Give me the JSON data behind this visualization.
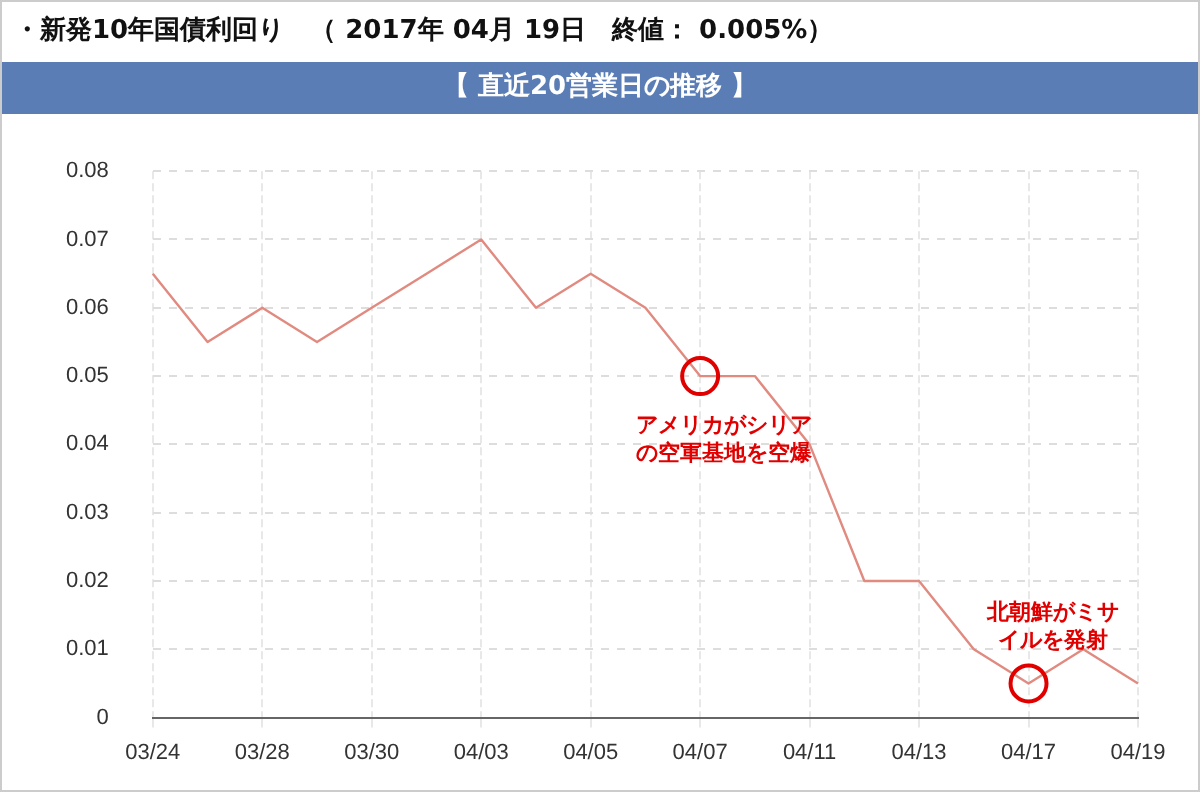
{
  "chart_data": {
    "type": "line",
    "title": "・新発10年国債利回り　（ 2017年 04月 19日　終値： 0.005%）",
    "subtitle": "【 直近20営業日の推移 】",
    "categories": [
      "03/24",
      null,
      "03/28",
      null,
      "03/30",
      null,
      "04/03",
      null,
      "04/05",
      null,
      "04/07",
      null,
      "04/11",
      null,
      "04/13",
      null,
      "04/17",
      null,
      "04/19"
    ],
    "series": [
      {
        "color": "#e08a80",
        "values": [
          0.065,
          0.055,
          0.06,
          0.055,
          0.06,
          0.065,
          0.07,
          0.06,
          0.065,
          0.06,
          0.05,
          0.05,
          0.04,
          0.02,
          0.02,
          0.01,
          0.005,
          0.01,
          0.005
        ]
      }
    ],
    "ylim": [
      0,
      0.08
    ],
    "yticks": [
      0,
      0.01,
      0.02,
      0.03,
      0.04,
      0.05,
      0.06,
      0.07,
      0.08
    ],
    "grid": true,
    "legend": false,
    "marker": "none",
    "line_style": "solid",
    "annotations": [
      {
        "text": "アメリカがシリアの空軍基地を空爆",
        "x": "04/07",
        "y": 0.05
      },
      {
        "text": "北朝鮮がミサイルを発射",
        "x": "04/17",
        "y": 0.005
      }
    ]
  }
}
